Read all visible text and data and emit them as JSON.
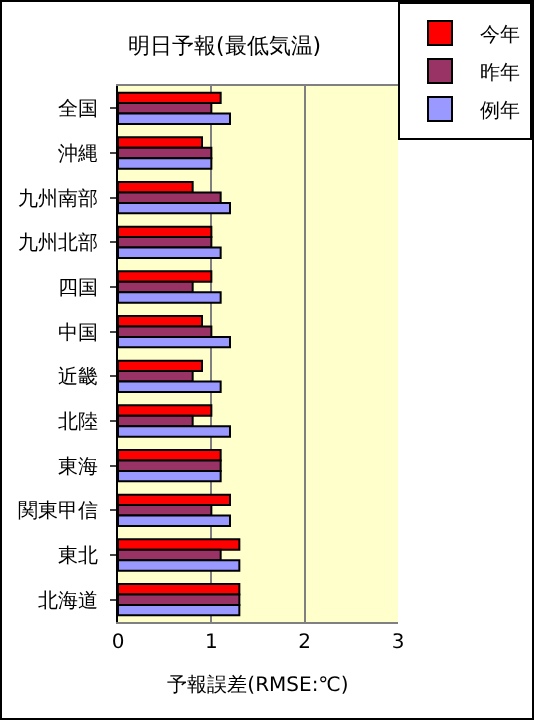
{
  "chart_data": {
    "type": "bar",
    "orientation": "horizontal",
    "title": "明日予報(最低気温)",
    "xlabel": "予報誤差(RMSE:℃)",
    "categories": [
      "全国",
      "沖縄",
      "九州南部",
      "九州北部",
      "四国",
      "中国",
      "近畿",
      "北陸",
      "東海",
      "関東甲信",
      "東北",
      "北海道"
    ],
    "series": [
      {
        "name": "今年",
        "color": "#ff0000",
        "values": [
          1.1,
          0.9,
          0.8,
          1.0,
          1.0,
          0.9,
          0.9,
          1.0,
          1.1,
          1.2,
          1.3,
          1.3
        ]
      },
      {
        "name": "昨年",
        "color": "#993366",
        "values": [
          1.0,
          1.0,
          1.1,
          1.0,
          0.8,
          1.0,
          0.8,
          0.8,
          1.1,
          1.0,
          1.1,
          1.3
        ]
      },
      {
        "name": "例年",
        "color": "#9999ff",
        "values": [
          1.2,
          1.0,
          1.2,
          1.1,
          1.1,
          1.2,
          1.1,
          1.2,
          1.1,
          1.2,
          1.3,
          1.3
        ]
      }
    ],
    "xlim": [
      0,
      3
    ],
    "xticks": [
      0,
      1,
      2,
      3
    ],
    "grid": "x",
    "legend": "top right"
  }
}
